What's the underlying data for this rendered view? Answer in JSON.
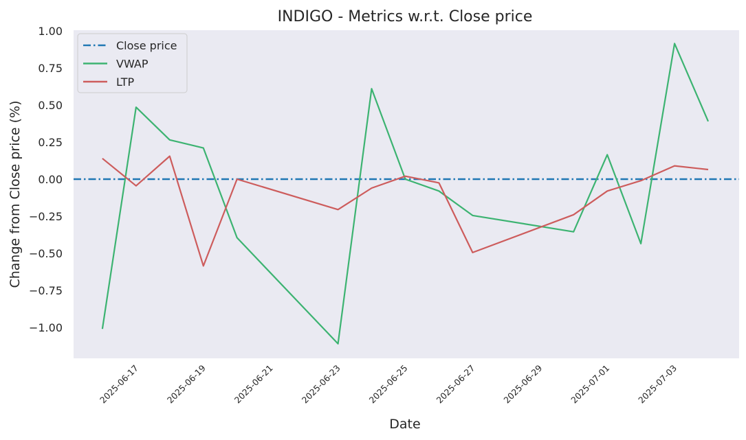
{
  "chart_data": {
    "type": "line",
    "title": "INDIGO - Metrics w.r.t. Close price",
    "xlabel": "Date",
    "ylabel": "Change from Close price (%)",
    "ylim": [
      -1.2,
      1.0
    ],
    "yticks": [
      "1.00",
      "0.75",
      "0.50",
      "0.25",
      "0.00",
      "−0.25",
      "−0.50",
      "−0.75",
      "−1.00"
    ],
    "ytick_values": [
      1.0,
      0.75,
      0.5,
      0.25,
      0.0,
      -0.25,
      -0.5,
      -0.75,
      -1.0
    ],
    "xlim": [
      "2025-06-15",
      "2025-07-04"
    ],
    "xticks": [
      "2025-06-17",
      "2025-06-19",
      "2025-06-21",
      "2025-06-23",
      "2025-06-25",
      "2025-06-27",
      "2025-06-29",
      "2025-07-01",
      "2025-07-03"
    ],
    "grid": false,
    "legend": "top-left",
    "x": [
      "2025-06-16",
      "2025-06-17",
      "2025-06-18",
      "2025-06-19",
      "2025-06-20",
      "2025-06-23",
      "2025-06-24",
      "2025-06-25",
      "2025-06-26",
      "2025-06-27",
      "2025-06-30",
      "2025-07-01",
      "2025-07-02",
      "2025-07-03",
      "2025-07-04"
    ],
    "series": [
      {
        "name": "Close price",
        "color": "#1f77b4",
        "style": "dashdot",
        "constant": 0.0
      },
      {
        "name": "VWAP",
        "color": "#3cb371",
        "style": "solid",
        "values": [
          -1.01,
          0.485,
          0.265,
          0.21,
          -0.395,
          -1.11,
          0.61,
          0.0,
          -0.08,
          -0.245,
          -0.355,
          0.165,
          -0.435,
          0.915,
          0.39
        ]
      },
      {
        "name": "LTP",
        "color": "#cd5c5c",
        "style": "solid",
        "values": [
          0.14,
          -0.045,
          0.155,
          -0.585,
          0.0,
          -0.205,
          -0.06,
          0.02,
          -0.025,
          -0.495,
          -0.24,
          -0.08,
          -0.01,
          0.09,
          0.065
        ]
      }
    ]
  }
}
